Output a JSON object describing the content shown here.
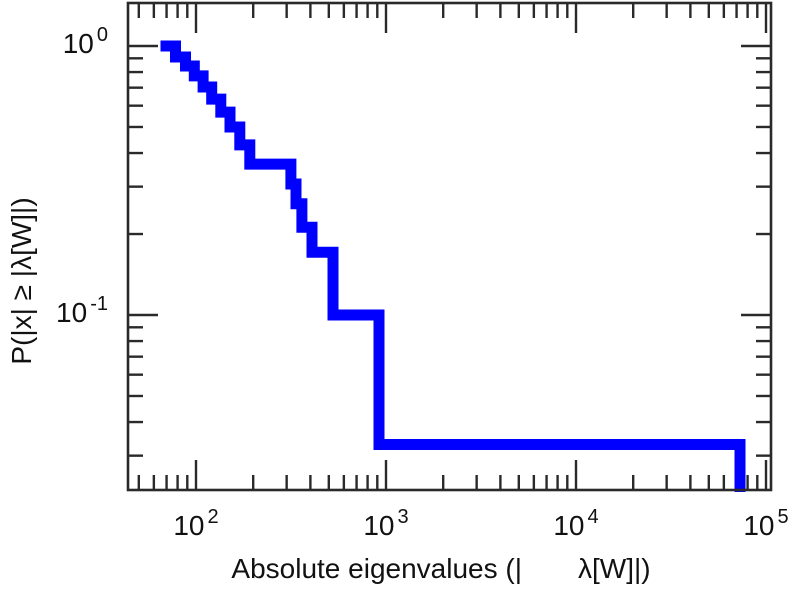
{
  "figure": {
    "background": "#ffffff",
    "frame_color": "#2a2a2a",
    "text_color": "#111111"
  },
  "axes": {
    "x": {
      "scale": "log",
      "title_left": "Absolute eigenvalues (|",
      "title_right": "λ[W]|)",
      "ticks": [
        {
          "base": "10",
          "exp": "2",
          "value": 100
        },
        {
          "base": "10",
          "exp": "3",
          "value": 1000
        },
        {
          "base": "10",
          "exp": "4",
          "value": 10000
        },
        {
          "base": "10",
          "exp": "5",
          "value": 100000
        }
      ],
      "minor_values": [
        50,
        60,
        70,
        80,
        90,
        200,
        300,
        400,
        500,
        600,
        700,
        800,
        900,
        2000,
        3000,
        4000,
        5000,
        6000,
        7000,
        8000,
        9000,
        20000,
        30000,
        40000,
        50000,
        60000,
        70000,
        80000,
        90000
      ]
    },
    "y": {
      "scale": "log",
      "title": "P(|x| ≥ |λ[W]|)",
      "ticks": [
        {
          "base": "10",
          "exp": "0",
          "value": 1
        },
        {
          "base": "10",
          "exp": "-1",
          "value": 0.1
        }
      ],
      "minor_values": [
        0.9,
        0.8,
        0.7,
        0.6,
        0.5,
        0.4,
        0.3,
        0.2,
        0.09,
        0.08,
        0.07,
        0.06,
        0.05,
        0.04,
        0.03
      ]
    }
  },
  "chart_data": {
    "type": "line",
    "subtype": "empirical-ccdf-staircase",
    "title": "",
    "xlabel": "Absolute eigenvalues (| λ[W]|)",
    "ylabel": "P(|x| ≥ |λ[W]|)",
    "x_scale": "log",
    "y_scale": "log",
    "xlim": [
      44,
      105000
    ],
    "ylim": [
      0.022,
      1.45
    ],
    "x_ticks": [
      100,
      1000,
      10000,
      100000
    ],
    "y_ticks": [
      1,
      0.1
    ],
    "grid": false,
    "legend": null,
    "line_color": "#0000ff",
    "line_width": 11,
    "steps_note": "each entry is [absolute eigenvalue, P(|x| >= value)] giving the level that starts at that value; curve drops to 0 (off-scale) at largest_value",
    "steps": [
      [
        65,
        1.0
      ],
      [
        78,
        0.91
      ],
      [
        88,
        0.843
      ],
      [
        98,
        0.774
      ],
      [
        109,
        0.704
      ],
      [
        121,
        0.635
      ],
      [
        135,
        0.568
      ],
      [
        151,
        0.5
      ],
      [
        170,
        0.429
      ],
      [
        192,
        0.364
      ],
      [
        316,
        0.307
      ],
      [
        336,
        0.259
      ],
      [
        361,
        0.212
      ],
      [
        408,
        0.171
      ],
      [
        526,
        0.1
      ],
      [
        919,
        0.033
      ]
    ],
    "largest_value": 73000
  }
}
